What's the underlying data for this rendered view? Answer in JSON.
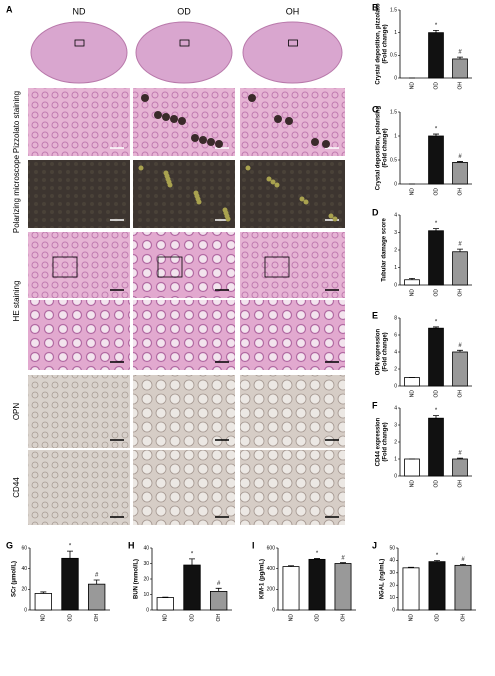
{
  "panel_a": {
    "label": "A",
    "columns": [
      "ND",
      "OD",
      "OH"
    ],
    "rows": [
      "Pizzolato staining",
      "Polarizing microscope",
      "HE staining",
      "OPN",
      "CD44"
    ]
  },
  "chart_data": [
    {
      "type": "bar",
      "label": "B",
      "ylabel": [
        "Crystal deposition, pizzolato",
        "(Fold change)"
      ],
      "categories": [
        "ND",
        "OD",
        "OH"
      ],
      "values": [
        0,
        1.0,
        0.42
      ],
      "errors": [
        0,
        0.05,
        0.04
      ],
      "colors": [
        "#ffffff",
        "#111111",
        "#999999"
      ],
      "annotations": [
        null,
        "*",
        "#"
      ],
      "ylim": [
        0,
        1.5
      ],
      "yticks": [
        0,
        0.5,
        1,
        1.5
      ]
    },
    {
      "type": "bar",
      "label": "C",
      "ylabel": [
        "Crystal deposition, polarising",
        "(Fold change)"
      ],
      "categories": [
        "ND",
        "OD",
        "OH"
      ],
      "values": [
        0,
        1.0,
        0.45
      ],
      "errors": [
        0,
        0.04,
        0.02
      ],
      "colors": [
        "#ffffff",
        "#111111",
        "#999999"
      ],
      "annotations": [
        null,
        "*",
        "#"
      ],
      "ylim": [
        0,
        1.5
      ],
      "yticks": [
        0,
        0.5,
        1,
        1.5
      ]
    },
    {
      "type": "bar",
      "label": "D",
      "ylabel": [
        "Tubular damage score"
      ],
      "categories": [
        "ND",
        "OD",
        "OH"
      ],
      "values": [
        0.3,
        3.1,
        1.9
      ],
      "errors": [
        0.08,
        0.12,
        0.15
      ],
      "colors": [
        "#ffffff",
        "#111111",
        "#999999"
      ],
      "annotations": [
        null,
        "*",
        "#"
      ],
      "ylim": [
        0,
        4
      ],
      "yticks": [
        0,
        1,
        2,
        3,
        4
      ]
    },
    {
      "type": "bar",
      "label": "E",
      "ylabel": [
        "OPN expression",
        "(Fold change)"
      ],
      "categories": [
        "ND",
        "OD",
        "OH"
      ],
      "values": [
        1,
        6.8,
        4.0
      ],
      "errors": [
        0,
        0.15,
        0.2
      ],
      "colors": [
        "#ffffff",
        "#111111",
        "#999999"
      ],
      "annotations": [
        null,
        "*",
        "#"
      ],
      "ylim": [
        0,
        8
      ],
      "yticks": [
        0,
        2,
        4,
        6,
        8
      ]
    },
    {
      "type": "bar",
      "label": "F",
      "ylabel": [
        "CD44 expression",
        "(Fold change)"
      ],
      "categories": [
        "ND",
        "OD",
        "OH"
      ],
      "values": [
        1,
        3.4,
        1.0
      ],
      "errors": [
        0,
        0.15,
        0.05
      ],
      "colors": [
        "#ffffff",
        "#111111",
        "#999999"
      ],
      "annotations": [
        null,
        "*",
        "#"
      ],
      "ylim": [
        0,
        4
      ],
      "yticks": [
        0,
        1,
        2,
        3,
        4
      ]
    },
    {
      "type": "bar",
      "label": "G",
      "ylabel": [
        "SCr (μmol/L)"
      ],
      "categories": [
        "ND",
        "OD",
        "OH"
      ],
      "values": [
        16,
        50,
        25
      ],
      "errors": [
        1.5,
        7,
        4
      ],
      "colors": [
        "#ffffff",
        "#111111",
        "#999999"
      ],
      "annotations": [
        null,
        "*",
        "#"
      ],
      "ylim": [
        0,
        60
      ],
      "yticks": [
        0,
        20,
        40,
        60
      ]
    },
    {
      "type": "bar",
      "label": "H",
      "ylabel": [
        "BUN (mmol/L)"
      ],
      "categories": [
        "ND",
        "OD",
        "OH"
      ],
      "values": [
        8,
        29,
        12
      ],
      "errors": [
        0.3,
        4,
        2
      ],
      "colors": [
        "#ffffff",
        "#111111",
        "#999999"
      ],
      "annotations": [
        null,
        "*",
        "#"
      ],
      "ylim": [
        0,
        40
      ],
      "yticks": [
        0,
        10,
        20,
        30,
        40
      ]
    },
    {
      "type": "bar",
      "label": "I",
      "ylabel": [
        "KIM-1 (pg/mL)"
      ],
      "categories": [
        "ND",
        "OD",
        "OH"
      ],
      "values": [
        420,
        490,
        450
      ],
      "errors": [
        8,
        8,
        8
      ],
      "colors": [
        "#ffffff",
        "#111111",
        "#999999"
      ],
      "annotations": [
        null,
        "*",
        "#"
      ],
      "ylim": [
        0,
        600
      ],
      "yticks": [
        0,
        200,
        400,
        600
      ]
    },
    {
      "type": "bar",
      "label": "J",
      "ylabel": [
        "NGAL (ng/mL)"
      ],
      "categories": [
        "ND",
        "OD",
        "OH"
      ],
      "values": [
        34,
        39,
        36
      ],
      "errors": [
        0.5,
        0.8,
        0.8
      ],
      "colors": [
        "#ffffff",
        "#111111",
        "#999999"
      ],
      "annotations": [
        null,
        "*",
        "#"
      ],
      "ylim": [
        0,
        50
      ],
      "yticks": [
        0,
        10,
        20,
        30,
        40,
        50
      ]
    }
  ]
}
